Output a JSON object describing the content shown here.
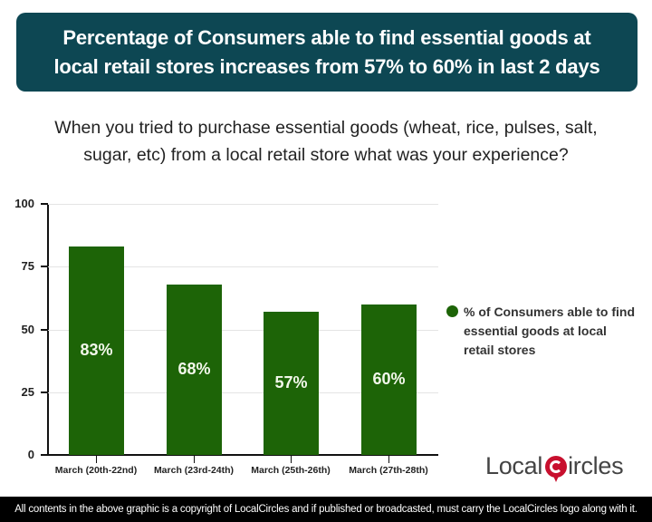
{
  "banner": {
    "line1": "Percentage of Consumers able to find essential goods at",
    "line2": "local retail stores increases from 57% to 60% in last 2 days"
  },
  "question": {
    "line1": "When you tried to purchase essential goods (wheat, rice, pulses, salt,",
    "line2": "sugar, etc) from a local retail store what was your experience?"
  },
  "chart_data": {
    "type": "bar",
    "title": "Percentage of Consumers able to find essential goods at local retail stores increases from 57% to 60% in last 2 days",
    "subtitle": "When you tried to purchase essential goods (wheat, rice, pulses, salt, sugar, etc) from a local retail store what was your experience?",
    "categories": [
      "March (20th-22nd)",
      "March (23rd-24th)",
      "March (25th-26th)",
      "March (27th-28th)"
    ],
    "series": [
      {
        "name": "% of Consumers able to find essential goods at local retail stores",
        "values": [
          83,
          68,
          57,
          60
        ],
        "color": "#1d6407"
      }
    ],
    "data_labels": [
      "83%",
      "68%",
      "57%",
      "60%"
    ],
    "xlabel": "",
    "ylabel": "",
    "ylim": [
      0,
      100
    ],
    "yticks": [
      "0",
      "25",
      "50",
      "75",
      "100"
    ],
    "grid": true,
    "legend_position": "right"
  },
  "legend": {
    "line1": "% of Consumers able to find",
    "line2": "essential goods at local",
    "line3": "retail stores"
  },
  "logo": {
    "part1": "Local",
    "part2": "ircles"
  },
  "footer": {
    "text": "All contents in the above graphic is a copyright of LocalCircles and if published or broadcasted, must carry the LocalCircles logo along with it."
  },
  "colors": {
    "banner_bg": "#0d4753",
    "bar": "#1d6407",
    "logo_red": "#c8102e",
    "footer_bg": "#000000"
  }
}
